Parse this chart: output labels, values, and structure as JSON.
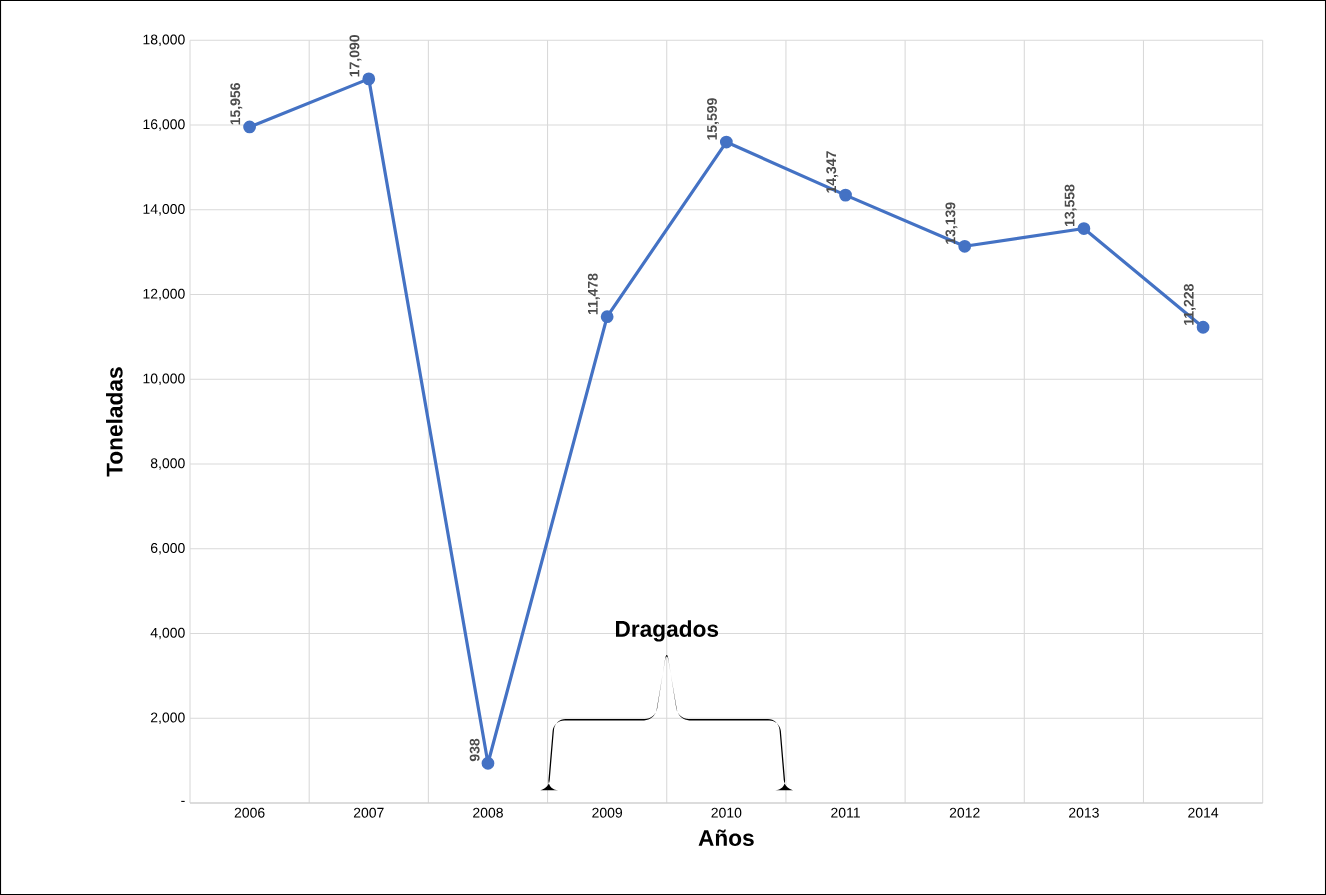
{
  "chart_data": {
    "type": "line",
    "xlabel": "Años",
    "ylabel": "Toneladas",
    "categories": [
      "2006",
      "2007",
      "2008",
      "2009",
      "2010",
      "2011",
      "2012",
      "2013",
      "2014"
    ],
    "series": [
      {
        "color": "#4472c4",
        "values": [
          15956,
          17090,
          938,
          11478,
          15599,
          14347,
          13139,
          13558,
          11228
        ],
        "value_labels": [
          "15,956",
          "17,090",
          "938",
          "11,478",
          "15,599",
          "14,347",
          "13,139",
          "13,558",
          "11,228"
        ]
      }
    ],
    "ylim": [
      0,
      18000
    ],
    "yticks": [
      {
        "value": 0,
        "label": "-"
      },
      {
        "value": 2000,
        "label": "2,000"
      },
      {
        "value": 4000,
        "label": "4,000"
      },
      {
        "value": 6000,
        "label": "6,000"
      },
      {
        "value": 8000,
        "label": "8,000"
      },
      {
        "value": 10000,
        "label": "10,000"
      },
      {
        "value": 12000,
        "label": "12,000"
      },
      {
        "value": 14000,
        "label": "14,000"
      },
      {
        "value": 16000,
        "label": "16,000"
      },
      {
        "value": 18000,
        "label": "18,000"
      }
    ],
    "grid": true,
    "marker": "circle",
    "line_style": "solid",
    "annotations": [
      "Dragados"
    ]
  }
}
